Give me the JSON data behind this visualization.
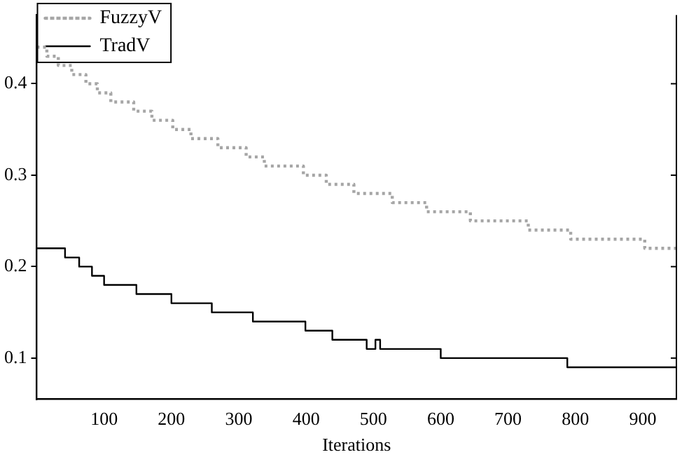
{
  "chart_data": {
    "type": "step",
    "xlabel": "Iterations",
    "xlim": [
      0,
      950
    ],
    "xticks": [
      100,
      200,
      300,
      400,
      500,
      600,
      700,
      800,
      900
    ],
    "ylim": [
      0.055,
      0.475
    ],
    "yticks": [
      0.1,
      0.2,
      0.3,
      0.4
    ],
    "legend": "top left",
    "grid": false,
    "marker": "none",
    "series": [
      {
        "name": "FuzzyV",
        "color": "#a6a6a6",
        "line_style": "dotted",
        "x": [
          0,
          15,
          32,
          52,
          73,
          90,
          110,
          144,
          171,
          202,
          229,
          269,
          311,
          338,
          396,
          430,
          471,
          528,
          579,
          644,
          730,
          793,
          903,
          950
        ],
        "values": [
          0.44,
          0.43,
          0.42,
          0.41,
          0.4,
          0.39,
          0.38,
          0.37,
          0.36,
          0.35,
          0.34,
          0.33,
          0.32,
          0.31,
          0.3,
          0.29,
          0.28,
          0.27,
          0.26,
          0.25,
          0.24,
          0.23,
          0.22,
          0.22
        ]
      },
      {
        "name": "TradV",
        "color": "#000000",
        "line_style": "solid",
        "x": [
          0,
          42,
          63,
          82,
          100,
          148,
          200,
          260,
          321,
          399,
          439,
          490,
          503,
          510,
          600,
          788,
          950
        ],
        "values": [
          0.22,
          0.21,
          0.2,
          0.19,
          0.18,
          0.17,
          0.16,
          0.15,
          0.14,
          0.13,
          0.12,
          0.11,
          0.12,
          0.11,
          0.1,
          0.09,
          0.09
        ]
      }
    ]
  }
}
